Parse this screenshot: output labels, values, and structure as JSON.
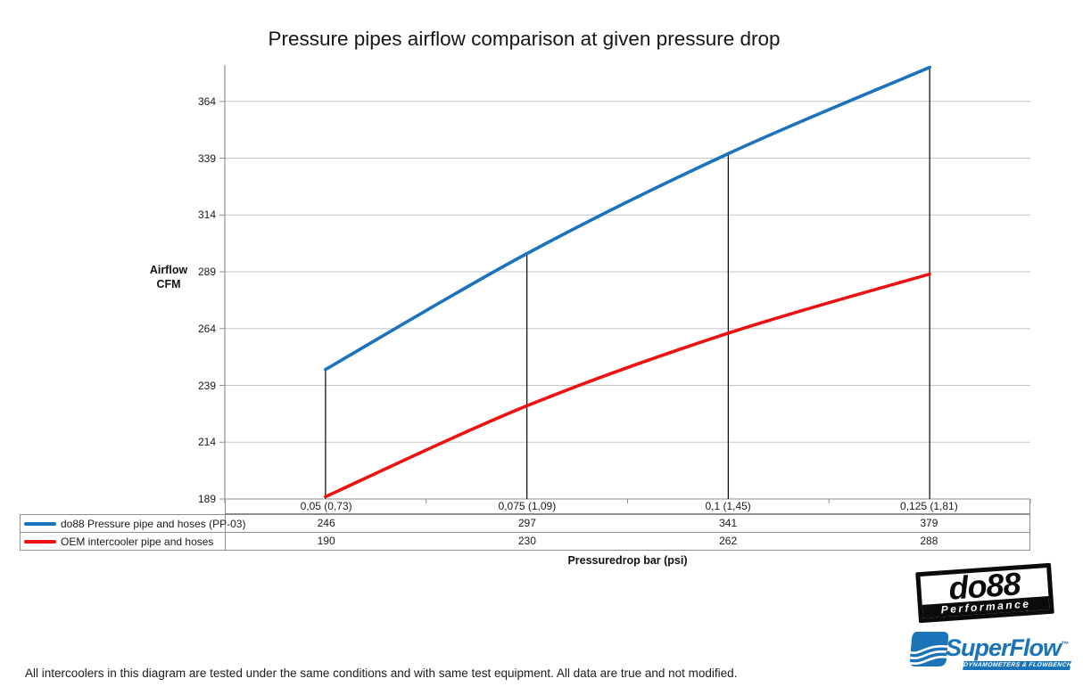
{
  "chart_data": {
    "type": "line",
    "title": "Pressure pipes airflow comparison at given pressure drop",
    "ylabel": [
      "Airflow",
      "CFM"
    ],
    "xlabel": "Pressuredrop bar (psi)",
    "categories": [
      "0,05 (0,73)",
      "0,075 (1,09)",
      "0,1 (1,45)",
      "0,125 (1,81)"
    ],
    "yticks": [
      189,
      214,
      239,
      264,
      289,
      314,
      339,
      364
    ],
    "ylim": [
      189,
      380
    ],
    "grid": "horizontal",
    "smooth_lines": true,
    "droplines_to_series": 0,
    "legend_position": "table-left",
    "series": [
      {
        "name": "do88 Pressure pipe and hoses (PP-03)",
        "color": "#1b72bd",
        "values": [
          246,
          297,
          341,
          379
        ]
      },
      {
        "name": "OEM intercooler pipe and hoses",
        "color": "#ee1111",
        "values": [
          190,
          230,
          262,
          288
        ]
      }
    ],
    "colors": {
      "gridline": "#c6c6c6",
      "axis": "#8e8e8e",
      "dropline": "#141414"
    }
  },
  "footer": {
    "note": "All intercoolers in this diagram are tested under the same conditions and with same test equipment. All data are true and not modified."
  },
  "logos": {
    "do88": {
      "name": "do88",
      "tagline": "Performance"
    },
    "superflow": {
      "name": "SuperFlow",
      "trademark": "™",
      "tagline": "DYNAMOMETERS & FLOWBENCHES"
    }
  }
}
